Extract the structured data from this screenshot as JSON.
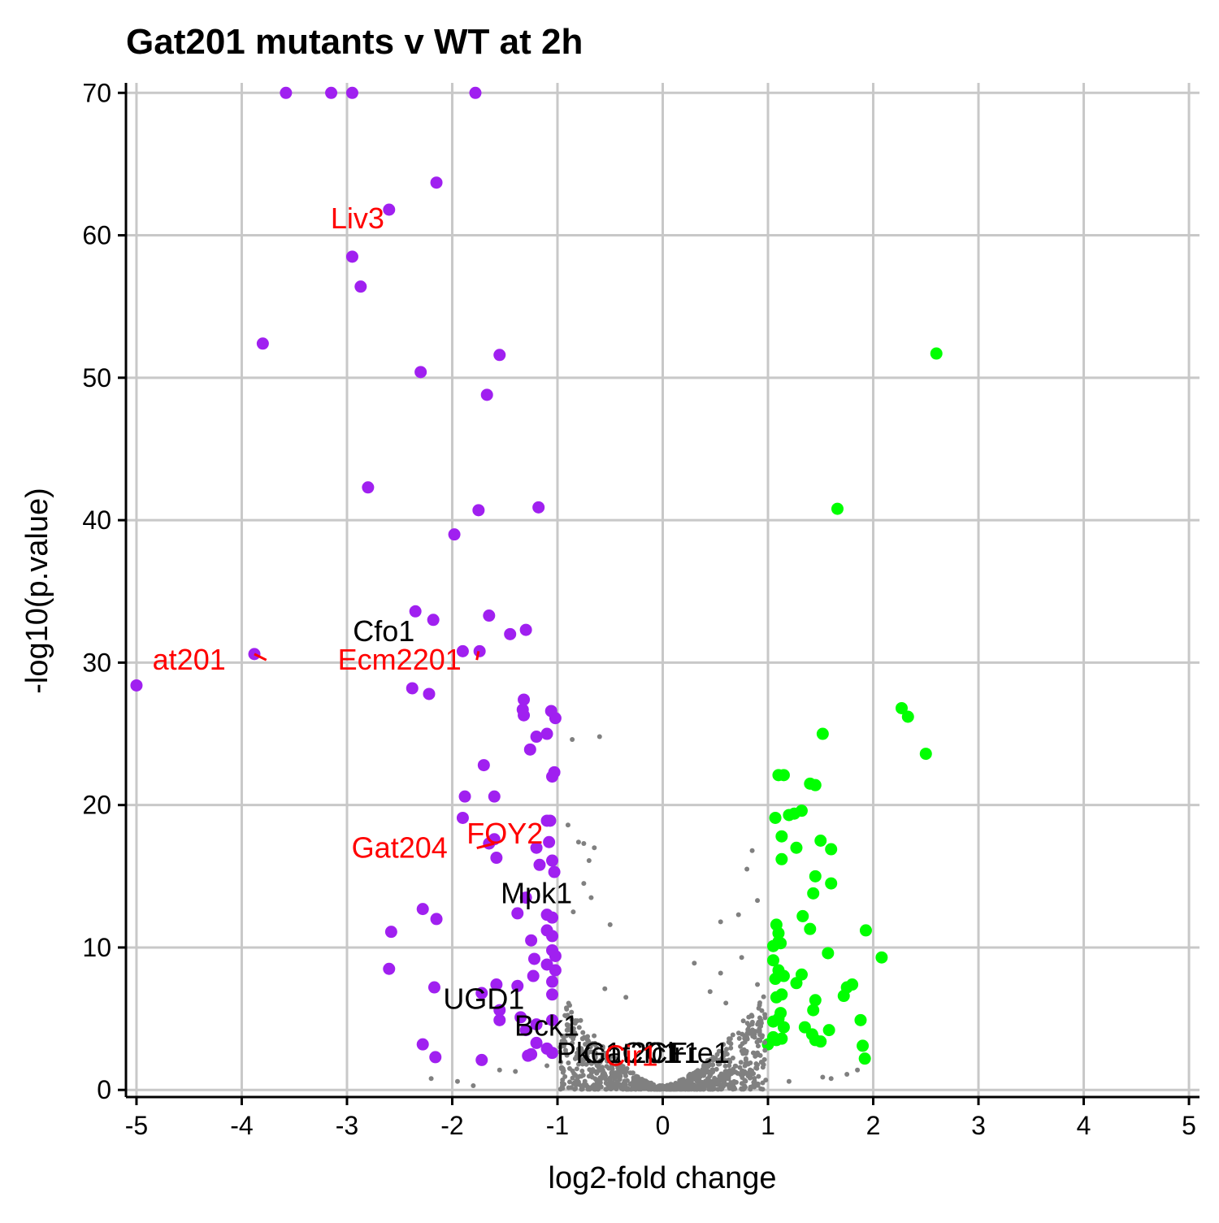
{
  "chart_data": {
    "type": "scatter",
    "title": "Gat201 mutants v WT at 2h",
    "xlabel": "log2-fold change",
    "ylabel": "-log10(p.value)",
    "xlim": [
      -5.1,
      5.1
    ],
    "ylim": [
      -0.5,
      70.7
    ],
    "x_ticks": [
      -5,
      -4,
      -3,
      -2,
      -1,
      0,
      1,
      2,
      3,
      4,
      5
    ],
    "y_ticks": [
      0,
      10,
      20,
      30,
      40,
      50,
      60,
      70
    ],
    "grid": true,
    "legend": "none",
    "colors": {
      "down": "#a020f0",
      "up": "#00ff00",
      "not_significant": "#808080",
      "highlight_label": "#ff0000",
      "label": "#000000",
      "grid": "#c8c8c8"
    },
    "series": [
      {
        "color_key": "down",
        "points": [
          [
            -3.58,
            70
          ],
          [
            -3.15,
            70
          ],
          [
            -2.95,
            70
          ],
          [
            -1.78,
            70
          ],
          [
            -2.15,
            63.7
          ],
          [
            -2.6,
            61.8
          ],
          [
            -2.95,
            58.5
          ],
          [
            -2.87,
            56.4
          ],
          [
            -3.8,
            52.4
          ],
          [
            -1.55,
            51.6
          ],
          [
            -2.3,
            50.4
          ],
          [
            -1.67,
            48.8
          ],
          [
            -2.8,
            42.3
          ],
          [
            -1.75,
            40.7
          ],
          [
            -1.18,
            40.9
          ],
          [
            -1.98,
            39
          ],
          [
            -2.35,
            33.6
          ],
          [
            -2.18,
            33
          ],
          [
            -1.65,
            33.3
          ],
          [
            -1.45,
            32
          ],
          [
            -1.3,
            32.3
          ],
          [
            -3.88,
            30.6
          ],
          [
            -1.9,
            30.8
          ],
          [
            -1.74,
            30.8
          ],
          [
            -5,
            28.4
          ],
          [
            -2.38,
            28.2
          ],
          [
            -2.22,
            27.8
          ],
          [
            -1.32,
            27.4
          ],
          [
            -1.33,
            26.7
          ],
          [
            -1.32,
            26.3
          ],
          [
            -1.06,
            26.6
          ],
          [
            -1.02,
            26.1
          ],
          [
            -1.1,
            25
          ],
          [
            -1.2,
            24.8
          ],
          [
            -1.26,
            23.9
          ],
          [
            -1.7,
            22.8
          ],
          [
            -1.03,
            22.3
          ],
          [
            -1.05,
            22
          ],
          [
            -1.88,
            20.6
          ],
          [
            -1.6,
            20.6
          ],
          [
            -1.9,
            19.1
          ],
          [
            -1.1,
            18.9
          ],
          [
            -1.07,
            18.9
          ],
          [
            -1.6,
            17.6
          ],
          [
            -1.08,
            17.4
          ],
          [
            -1.2,
            17
          ],
          [
            -1.65,
            17.3
          ],
          [
            -1.58,
            16.3
          ],
          [
            -1.05,
            16.1
          ],
          [
            -1.17,
            15.8
          ],
          [
            -1.03,
            15.3
          ],
          [
            -1.3,
            13.5
          ],
          [
            -1.38,
            12.4
          ],
          [
            -1.1,
            12.3
          ],
          [
            -1.05,
            12.1
          ],
          [
            -2.28,
            12.7
          ],
          [
            -2.15,
            12
          ],
          [
            -2.58,
            11.1
          ],
          [
            -1.1,
            11.2
          ],
          [
            -1.05,
            10.8
          ],
          [
            -1.25,
            10.5
          ],
          [
            -1.05,
            9.8
          ],
          [
            -1.22,
            9.2
          ],
          [
            -1.02,
            9.4
          ],
          [
            -1.1,
            8.8
          ],
          [
            -1.23,
            8
          ],
          [
            -1.02,
            8.4
          ],
          [
            -1.05,
            7.6
          ],
          [
            -2.6,
            8.5
          ],
          [
            -1.58,
            7.4
          ],
          [
            -1.38,
            7.3
          ],
          [
            -2.17,
            7.2
          ],
          [
            -1.05,
            6.7
          ],
          [
            -1.72,
            6.8
          ],
          [
            -1.55,
            5.6
          ],
          [
            -1.55,
            4.9
          ],
          [
            -1.35,
            5.1
          ],
          [
            -1.2,
            4.6
          ],
          [
            -1.05,
            4.9
          ],
          [
            -1.3,
            4.2
          ],
          [
            -2.28,
            3.2
          ],
          [
            -1.2,
            3.3
          ],
          [
            -2.16,
            2.3
          ],
          [
            -1.72,
            2.1
          ],
          [
            -1.28,
            2.4
          ],
          [
            -1.25,
            2.5
          ],
          [
            -1.05,
            2.6
          ],
          [
            -1.1,
            2.9
          ]
        ]
      },
      {
        "color_key": "up",
        "points": [
          [
            2.6,
            51.7
          ],
          [
            1.66,
            40.8
          ],
          [
            2.27,
            26.8
          ],
          [
            2.33,
            26.2
          ],
          [
            1.52,
            25
          ],
          [
            2.5,
            23.6
          ],
          [
            1.1,
            22.1
          ],
          [
            1.15,
            22.1
          ],
          [
            1.4,
            21.5
          ],
          [
            1.45,
            21.4
          ],
          [
            1.32,
            19.6
          ],
          [
            1.25,
            19.4
          ],
          [
            1.2,
            19.3
          ],
          [
            1.07,
            19.1
          ],
          [
            1.13,
            17.8
          ],
          [
            1.5,
            17.5
          ],
          [
            1.27,
            17
          ],
          [
            1.6,
            16.9
          ],
          [
            1.13,
            16.2
          ],
          [
            1.45,
            15
          ],
          [
            1.6,
            14.5
          ],
          [
            1.43,
            13.8
          ],
          [
            1.33,
            12.2
          ],
          [
            1.08,
            11.6
          ],
          [
            1.1,
            11
          ],
          [
            1.4,
            11.3
          ],
          [
            1.93,
            11.2
          ],
          [
            1.05,
            10.1
          ],
          [
            1.1,
            10.4
          ],
          [
            1.12,
            10.3
          ],
          [
            1.57,
            9.6
          ],
          [
            2.08,
            9.3
          ],
          [
            1.05,
            9.1
          ],
          [
            1.1,
            8.4
          ],
          [
            1.15,
            8
          ],
          [
            1.32,
            8.1
          ],
          [
            1.07,
            7.8
          ],
          [
            1.27,
            7.5
          ],
          [
            1.8,
            7.4
          ],
          [
            1.75,
            7.2
          ],
          [
            1.45,
            6.3
          ],
          [
            1.72,
            6.6
          ],
          [
            1.08,
            6.5
          ],
          [
            1.13,
            6.7
          ],
          [
            1.43,
            5.6
          ],
          [
            1.12,
            5.4
          ],
          [
            1.1,
            5
          ],
          [
            1.05,
            4.8
          ],
          [
            1.15,
            4.4
          ],
          [
            1.35,
            4.4
          ],
          [
            1.58,
            4.2
          ],
          [
            1.88,
            4.9
          ],
          [
            1.42,
            3.9
          ],
          [
            1.05,
            3.7
          ],
          [
            1.08,
            3.5
          ],
          [
            1.13,
            3.6
          ],
          [
            1.45,
            3.5
          ],
          [
            1.5,
            3.4
          ],
          [
            1,
            3.2
          ],
          [
            1.9,
            3.1
          ],
          [
            1.92,
            2.2
          ]
        ]
      },
      {
        "color_key": "not_significant",
        "points": [
          [
            -0.86,
            24.6
          ],
          [
            -0.6,
            24.8
          ],
          [
            -0.9,
            18.6
          ],
          [
            -0.8,
            17.4
          ],
          [
            -0.75,
            17.3
          ],
          [
            -0.65,
            17
          ],
          [
            -0.7,
            16.1
          ],
          [
            0.85,
            16.8
          ],
          [
            0.8,
            15.5
          ],
          [
            -0.75,
            14.5
          ],
          [
            -0.68,
            13.5
          ],
          [
            0.9,
            13.3
          ],
          [
            -0.85,
            12.5
          ],
          [
            -0.5,
            11.6
          ],
          [
            0.72,
            12.3
          ],
          [
            0.55,
            11.8
          ],
          [
            0.3,
            8.9
          ],
          [
            0.55,
            8.2
          ],
          [
            0.75,
            9.3
          ],
          [
            0.9,
            7.4
          ],
          [
            -0.35,
            6.5
          ],
          [
            -0.55,
            7.1
          ],
          [
            0.45,
            6.9
          ],
          [
            0.6,
            6.1
          ],
          [
            -2.2,
            0.8
          ],
          [
            -1.55,
            1.4
          ],
          [
            -1.4,
            1.3
          ],
          [
            -1.1,
            1.7
          ],
          [
            -1.95,
            0.6
          ],
          [
            -1.8,
            0.3
          ],
          [
            0.95,
            0.5
          ],
          [
            1.2,
            0.6
          ],
          [
            1.6,
            0.8
          ],
          [
            1.75,
            1.1
          ],
          [
            1.85,
            1.4
          ],
          [
            1.52,
            0.9
          ]
        ],
        "cloud": {
          "x_min": -1,
          "x_max": 1,
          "count": 900
        }
      }
    ],
    "labels": [
      {
        "text": "Liv3",
        "x": -2.9,
        "y": 60.5,
        "color_key": "highlight_label"
      },
      {
        "text": "Cfo1",
        "x": -2.65,
        "y": 31.5,
        "color_key": "label"
      },
      {
        "text": "at201",
        "x": -4.5,
        "y": 29.5,
        "color_key": "highlight_label",
        "point": [
          -3.88,
          30.6
        ]
      },
      {
        "text": "Ecm2201",
        "x": -2.5,
        "y": 29.5,
        "color_key": "highlight_label",
        "point": [
          -1.75,
          30.8
        ]
      },
      {
        "text": "FOY2",
        "x": -1.5,
        "y": 17.3,
        "color_key": "highlight_label"
      },
      {
        "text": "Gat204",
        "x": -2.5,
        "y": 16.3,
        "color_key": "highlight_label",
        "point": [
          -1.6,
          17.3
        ]
      },
      {
        "text": "Mpk1",
        "x": -1.2,
        "y": 13.1,
        "color_key": "label"
      },
      {
        "text": "UGD1",
        "x": -1.7,
        "y": 5.7,
        "color_key": "label"
      },
      {
        "text": "Bck1",
        "x": -1.1,
        "y": 3.8,
        "color_key": "label"
      },
      {
        "text": "Pkc1",
        "x": -0.7,
        "y": 1.9,
        "color_key": "label"
      },
      {
        "text": "Gat201",
        "x": -0.3,
        "y": 1.9,
        "color_key": "label"
      },
      {
        "text": "Cir1",
        "x": 0.1,
        "y": 1.9,
        "color_key": "label"
      },
      {
        "text": "Fre1",
        "x": 0.35,
        "y": 1.9,
        "color_key": "label"
      },
      {
        "text": "Cfc1",
        "x": -0.1,
        "y": 1.9,
        "color_key": "label"
      },
      {
        "text": "Cir1",
        "x": -0.3,
        "y": 1.7,
        "color_key": "highlight_label"
      }
    ]
  }
}
